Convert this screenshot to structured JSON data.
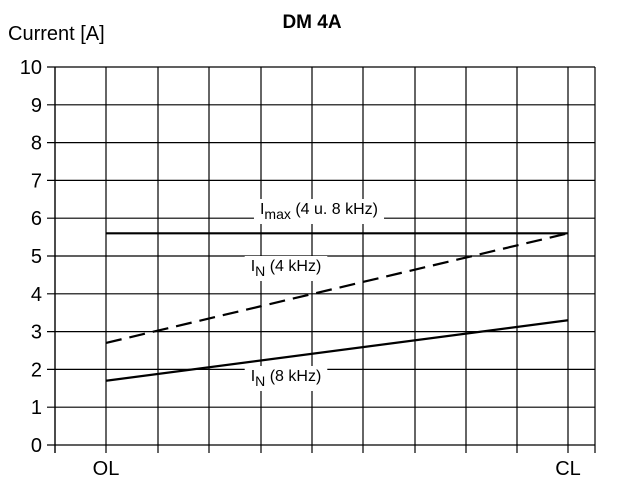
{
  "chart_data": {
    "type": "line",
    "title": "DM 4A",
    "ylabel": "Current [A]",
    "xlabel": "",
    "categories": [
      "OL",
      "CL"
    ],
    "ylim": [
      0,
      10
    ],
    "yticks": [
      "0",
      "1",
      "2",
      "3",
      "4",
      "5",
      "6",
      "7",
      "8",
      "9",
      "10"
    ],
    "grid": true,
    "series": [
      {
        "name": "Imax (4 u. 8 kHz)",
        "base": "I",
        "sub": "max",
        "rest": " (4 u. 8 kHz)",
        "style": "solid",
        "values": [
          5.6,
          5.6
        ]
      },
      {
        "name": "IN (4 kHz)",
        "base": "I",
        "sub": "N",
        "rest": " (4 kHz)",
        "style": "dashed",
        "values": [
          2.7,
          5.6
        ]
      },
      {
        "name": "IN (8 kHz)",
        "base": "I",
        "sub": "N",
        "rest": " (8 kHz)",
        "style": "solid",
        "values": [
          1.7,
          3.3
        ]
      }
    ],
    "line_color": "#000000"
  }
}
